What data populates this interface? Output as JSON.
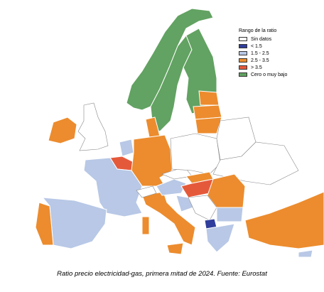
{
  "legend": {
    "title": "Rango de la ratio",
    "items": [
      {
        "label": "Sin datos",
        "color": "#ffffff"
      },
      {
        "label": "< 1.5",
        "color": "#2f3d9c"
      },
      {
        "label": "1.5 - 2.5",
        "color": "#b8c8e6"
      },
      {
        "label": "2.5 - 3.5",
        "color": "#ec8c2e"
      },
      {
        "label": "> 3.5",
        "color": "#e5593b"
      },
      {
        "label": "Cero o muy bajo",
        "color": "#62a262"
      }
    ]
  },
  "caption": "Ratio precio electricidad-gas, primera mitad de 2024. Fuente: Eurostat"
}
